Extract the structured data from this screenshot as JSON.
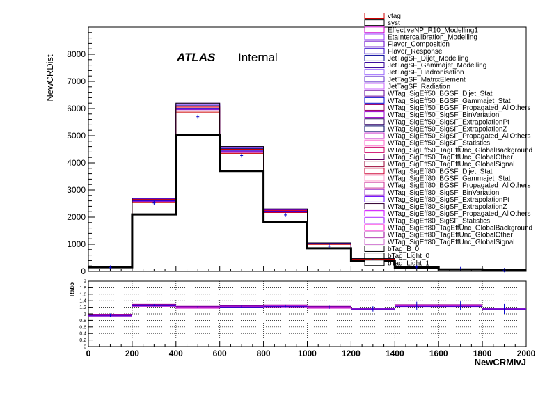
{
  "chart_data": [
    {
      "type": "histogram",
      "panel": "main",
      "ylabel": "NewCRDist",
      "xlim": [
        0,
        2000
      ],
      "ylim": [
        0,
        9000
      ],
      "yticks": [
        0,
        1000,
        2000,
        3000,
        4000,
        5000,
        6000,
        7000,
        8000
      ],
      "bin_edges": [
        0,
        200,
        400,
        600,
        800,
        1000,
        1200,
        1400,
        1600,
        1800,
        2000
      ],
      "annotation_bold": "ATLAS",
      "annotation": "Internal",
      "series": [
        {
          "name": "vtag",
          "color": "#cc0000",
          "values": [
            150,
            2650,
            6050,
            4500,
            2250,
            1000,
            450,
            170,
            90,
            50
          ]
        },
        {
          "name": "syst",
          "color": "#000000",
          "values": [
            150,
            2700,
            6200,
            4600,
            2300,
            1050,
            470,
            180,
            90,
            50
          ]
        },
        {
          "name": "nominal (black thick)",
          "color": "#000000",
          "values": [
            150,
            2100,
            5020,
            3700,
            1820,
            850,
            380,
            140,
            70,
            40
          ]
        },
        {
          "name": "data (blue points)",
          "color": "#0000cc",
          "values": [
            140,
            2520,
            5700,
            4270,
            2080,
            930,
            420,
            160,
            85,
            45
          ]
        }
      ],
      "band_colors": [
        "#cc0000",
        "#b000b0",
        "#7a00cc",
        "#3300cc",
        "#ff33cc",
        "#000080",
        "#6600ff",
        "#9933ff"
      ],
      "legend": [
        {
          "label": "vtag",
          "color": "#cc0000"
        },
        {
          "label": "syst",
          "color": "#000000"
        },
        {
          "label": "EffectiveNP_R10_Modelling1",
          "color": "#cc00cc"
        },
        {
          "label": "EtaIntercalibration_Modelling",
          "color": "#9933ff"
        },
        {
          "label": "Flavor_Composition",
          "color": "#6600cc"
        },
        {
          "label": "Flavor_Response",
          "color": "#3300cc"
        },
        {
          "label": "JetTagSF_Dijet_Modelling",
          "color": "#000099"
        },
        {
          "label": "JetTagSF_Gammajet_Modelling",
          "color": "#330099"
        },
        {
          "label": "JetTagSF_Hadronisation",
          "color": "#9966ff"
        },
        {
          "label": "JetTagSF_MatrixElement",
          "color": "#6633cc"
        },
        {
          "label": "JetTagSF_Radiation",
          "color": "#cc66ff"
        },
        {
          "label": "WTag_SigEff50_BGSF_Dijet_Stat",
          "color": "#660099"
        },
        {
          "label": "WTag_SigEff50_BGSF_Gammajet_Stat",
          "color": "#0000cc"
        },
        {
          "label": "WTag_SigEff50_BGSF_Propagated_AllOthers",
          "color": "#990066"
        },
        {
          "label": "WTag_SigEff50_SigSF_BinVariation",
          "color": "#9900cc"
        },
        {
          "label": "WTag_SigEff50_SigSF_ExtrapolationPt",
          "color": "#330066"
        },
        {
          "label": "WTag_SigEff50_SigSF_ExtrapolationZ",
          "color": "#000066"
        },
        {
          "label": "WTag_SigEff50_SigSF_Propagated_AllOthers",
          "color": "#cc33cc"
        },
        {
          "label": "WTag_SigEff50_SigSF_Statistics",
          "color": "#ff66cc"
        },
        {
          "label": "WTag_SigEff50_TagEffUnc_GlobalBackground",
          "color": "#cc0066"
        },
        {
          "label": "WTag_SigEff50_TagEffUnc_GlobalOther",
          "color": "#660066"
        },
        {
          "label": "WTag_SigEff50_TagEffUnc_GlobalSignal",
          "color": "#990033"
        },
        {
          "label": "WTag_SigEff80_BGSF_Dijet_Stat",
          "color": "#cc0033"
        },
        {
          "label": "WTag_SigEff80_BGSF_Gammajet_Stat",
          "color": "#ff99cc"
        },
        {
          "label": "WTag_SigEff80_BGSF_Propagated_AllOthers",
          "color": "#cc3399"
        },
        {
          "label": "WTag_SigEff80_SigSF_BinVariation",
          "color": "#9933cc"
        },
        {
          "label": "WTag_SigEff80_SigSF_ExtrapolationPt",
          "color": "#6600ff"
        },
        {
          "label": "WTag_SigEff80_SigSF_ExtrapolationZ",
          "color": "#330033"
        },
        {
          "label": "WTag_SigEff80_SigSF_Propagated_AllOthers",
          "color": "#cc00ff"
        },
        {
          "label": "WTag_SigEff80_SigSF_Statistics",
          "color": "#9900ff"
        },
        {
          "label": "WTag_SigEff80_TagEffUnc_GlobalBackground",
          "color": "#ff00cc"
        },
        {
          "label": "WTag_SigEff80_TagEffUnc_GlobalOther",
          "color": "#990099"
        },
        {
          "label": "WTag_SigEff80_TagEffUnc_GlobalSignal",
          "color": "#cc66cc"
        },
        {
          "label": "bTag_B_0",
          "color": "#000000"
        },
        {
          "label": "bTag_Light_0",
          "color": "#000000"
        },
        {
          "label": "bTag_Light_1",
          "color": "#000000"
        }
      ]
    },
    {
      "type": "histogram",
      "panel": "ratio",
      "ylabel": "Ratio",
      "xlabel": "NewCRMIvJ",
      "xlim": [
        0,
        2000
      ],
      "ylim": [
        0,
        2
      ],
      "yticks": [
        0,
        0.2,
        0.4,
        0.6,
        0.8,
        1,
        1.2,
        1.4,
        1.6,
        1.8,
        2
      ],
      "xticks": [
        0,
        200,
        400,
        600,
        800,
        1000,
        1200,
        1400,
        1600,
        1800,
        2000
      ],
      "grid": true,
      "bin_edges": [
        0,
        200,
        400,
        600,
        800,
        1000,
        1200,
        1400,
        1600,
        1800,
        2000
      ],
      "series": [
        {
          "name": "ratio",
          "color": "#cc00cc",
          "values": [
            0.96,
            1.26,
            1.2,
            1.22,
            1.24,
            1.2,
            1.15,
            1.25,
            1.25,
            1.15
          ]
        },
        {
          "name": "ratio errors",
          "color": "#0000cc",
          "values": [
            0.05,
            0.03,
            0.03,
            0.03,
            0.04,
            0.05,
            0.08,
            0.12,
            0.13,
            0.15
          ]
        }
      ]
    }
  ]
}
